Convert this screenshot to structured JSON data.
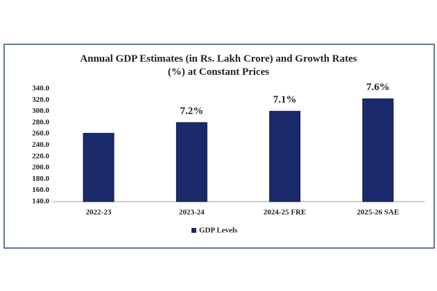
{
  "chart_data": {
    "type": "bar",
    "title": "Annual GDP Estimates (in Rs. Lakh Crore) and Growth Rates (%) at Constant Prices",
    "categories": [
      "2022-23",
      "2023-24",
      "2024-25 FRE",
      "2025-26 SAE"
    ],
    "series": [
      {
        "name": "GDP Levels",
        "color": "#1b2a6b",
        "values": [
          261,
          280,
          300,
          322
        ]
      }
    ],
    "growth_rates": {
      "values": [
        null,
        7.2,
        7.1,
        7.6
      ],
      "value_labels": [
        null,
        "7.2%",
        "7.1%",
        "7.6%"
      ],
      "color": "#b0621e"
    },
    "ylim": [
      140,
      340
    ],
    "yticks": [
      {
        "value": 140,
        "label": "140.0"
      },
      {
        "value": 160,
        "label": "160.0"
      },
      {
        "value": 180,
        "label": "180.0"
      },
      {
        "value": 200,
        "label": "200.0"
      },
      {
        "value": 220,
        "label": "220.0"
      },
      {
        "value": 240,
        "label": "240.0"
      },
      {
        "value": 260,
        "label": "260.0"
      },
      {
        "value": 280,
        "label": "280.0"
      },
      {
        "value": 300,
        "label": "300.0"
      },
      {
        "value": 320,
        "label": "320.0"
      },
      {
        "value": 340,
        "label": "340.0"
      }
    ],
    "grid": false,
    "legend": "bottom"
  }
}
